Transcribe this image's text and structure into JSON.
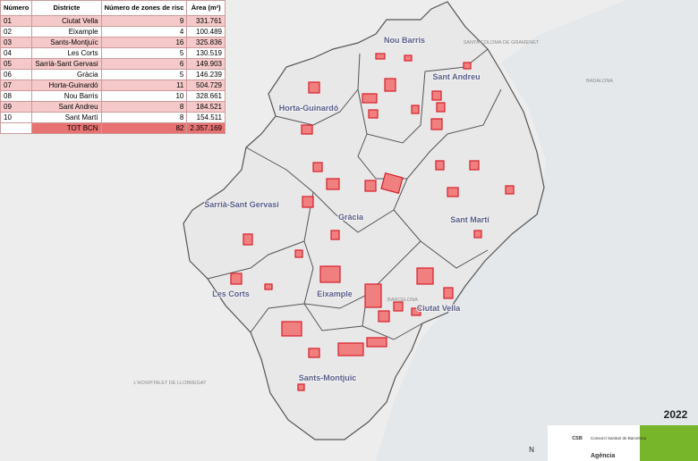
{
  "table": {
    "header": [
      "Número",
      "Districte",
      "Número de zones de risc",
      "Àrea (m²)"
    ],
    "rows": [
      [
        "01",
        "Ciutat Vella",
        9,
        "331.761"
      ],
      [
        "02",
        "Eixample",
        4,
        "100.489"
      ],
      [
        "03",
        "Sants-Montjuïc",
        16,
        "325.836"
      ],
      [
        "04",
        "Les Corts",
        5,
        "130.519"
      ],
      [
        "05",
        "Sarrià-Sant Gervasi",
        6,
        "149.903"
      ],
      [
        "06",
        "Gràcia",
        5,
        "146.239"
      ],
      [
        "07",
        "Horta-Guinardó",
        11,
        "504.729"
      ],
      [
        "08",
        "Nou Barris",
        10,
        "328.661"
      ],
      [
        "09",
        "Sant Andreu",
        8,
        "184.521"
      ],
      [
        "10",
        "Sant Martí",
        8,
        "154.511"
      ]
    ],
    "total": [
      "TOT BCN",
      82,
      "2.357.169"
    ]
  },
  "map": {
    "districts": [
      "Nou Barris",
      "Sant Andreu",
      "Horta-Guinardó",
      "Sarrià-Sant Gervasi",
      "Gràcia",
      "Sant Martí",
      "Les Corts",
      "Eixample",
      "Ciutat Vella",
      "Sants-Montjuïc"
    ],
    "places": [
      "SANTA COLOMA DE GRAMENET",
      "BADALONA",
      "L'HOSPITALET DE LLOBREGAT",
      "BARCELONA"
    ],
    "north": "N"
  },
  "footer": {
    "year": "2022",
    "logo_short": "CSB",
    "logo_name": "Consorci Sanitari de Barcelona",
    "agency": "Agència"
  }
}
